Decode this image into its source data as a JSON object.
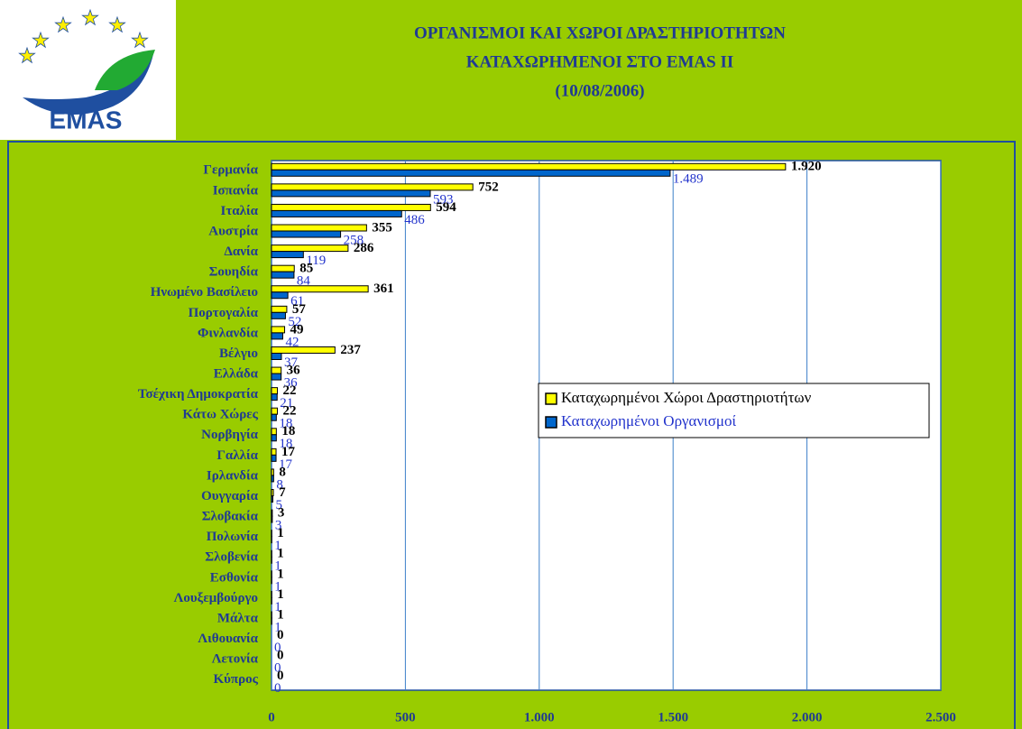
{
  "chart_data": {
    "type": "barh",
    "title": [
      "ΟΡΓΑΝΙΣΜΟΙ ΚΑΙ ΧΩΡΟΙ ΔΡΑΣΤΗΡΙΟΤΗΤΩΝ",
      "ΚΑΤΑΧΩΡΗΜΕΝΟΙ ΣΤΟ EMAS II",
      "(10/08/2006)"
    ],
    "logo_text": "EMAS",
    "categories": [
      "Γερμανία",
      "Ισπανία",
      "Ιταλία",
      "Αυστρία",
      "Δανία",
      "Σουηδία",
      "Ηνωμένο Βασίλειο",
      "Πορτογαλία",
      "Φινλανδία",
      "Βέλγιο",
      "Ελλάδα",
      "Τσέχικη Δημοκρατία",
      "Κάτω Χώρες",
      "Νορβηγία",
      "Γαλλία",
      "Ιρλανδία",
      "Ουγγαρία",
      "Σλοβακία",
      "Πολωνία",
      "Σλοβενία",
      "Εσθονία",
      "Λουξεμβούργο",
      "Μάλτα",
      "Λιθουανία",
      "Λετονία",
      "Κύπρος"
    ],
    "series": [
      {
        "name": "Καταχωρημένοι Χώροι Δραστηριοτήτων",
        "color": "#ffff00",
        "label_color": "#000000",
        "values": [
          1920,
          752,
          594,
          355,
          286,
          85,
          361,
          57,
          49,
          237,
          36,
          22,
          22,
          18,
          17,
          8,
          7,
          3,
          1,
          1,
          1,
          1,
          1,
          0,
          0,
          0
        ],
        "value_labels": [
          "1.920",
          "752",
          "594",
          "355",
          "286",
          "85",
          "361",
          "57",
          "49",
          "237",
          "36",
          "22",
          "22",
          "18",
          "17",
          "8",
          "7",
          "3",
          "1",
          "1",
          "1",
          "1",
          "1",
          "0",
          "0",
          "0"
        ]
      },
      {
        "name": "Καταχωρημένοι Οργανισμοί",
        "color": "#0066cc",
        "label_color": "#2233cc",
        "values": [
          1489,
          593,
          486,
          258,
          119,
          84,
          61,
          52,
          42,
          37,
          36,
          21,
          18,
          18,
          17,
          8,
          5,
          3,
          1,
          1,
          1,
          1,
          1,
          0,
          0,
          0
        ],
        "value_labels": [
          "1.489",
          "593",
          "486",
          "258",
          "119",
          "84",
          "61",
          "52",
          "42",
          "37",
          "36",
          "21",
          "18",
          "18",
          "17",
          "8",
          "5",
          "3",
          "1",
          "1",
          "1",
          "1",
          "1",
          "0",
          "0",
          "0"
        ]
      }
    ],
    "xlim": [
      0,
      2500
    ],
    "xticks": [
      0,
      500,
      {
        "value": 1000,
        "label": "1.000"
      },
      {
        "value": 1500,
        "label": "1.500"
      },
      {
        "value": 2000,
        "label": "2.000"
      },
      {
        "value": 2500,
        "label": "2.500"
      }
    ],
    "grid": true,
    "legend": "right"
  }
}
